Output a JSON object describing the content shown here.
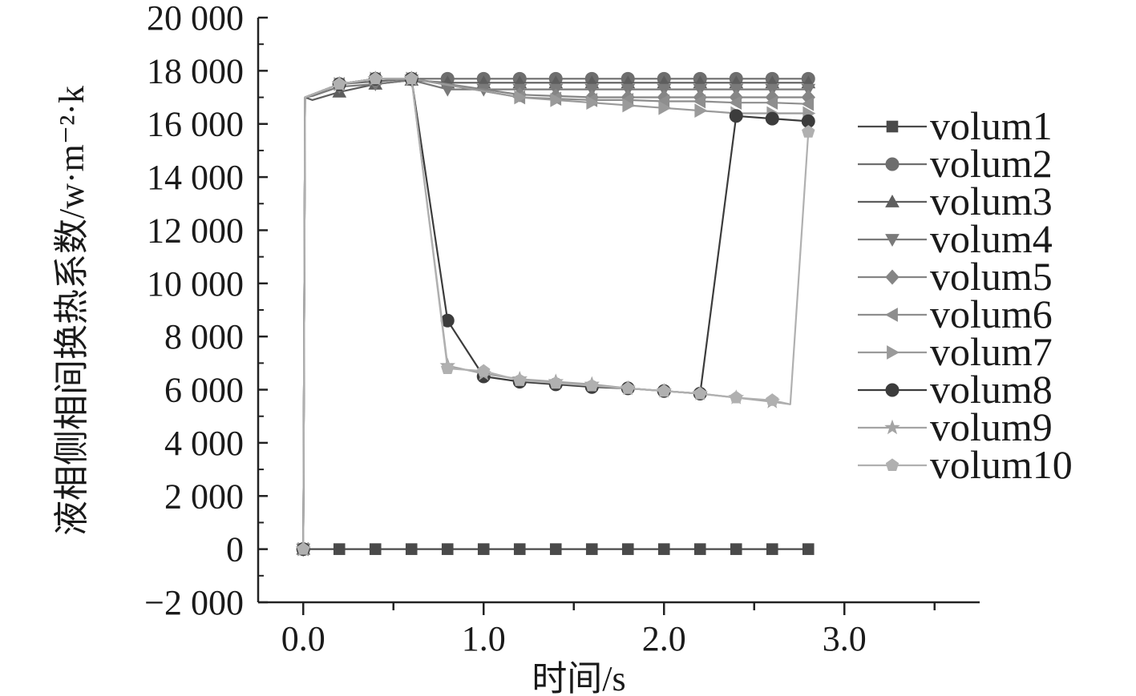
{
  "chart_data": {
    "type": "line",
    "title": "",
    "xlabel": "时间/s",
    "ylabel": "液相侧相间换热系数/w·m⁻²·k",
    "xlim": [
      -0.25,
      3.75
    ],
    "ylim": [
      -2000,
      20000
    ],
    "x_ticks": [
      0.0,
      1.0,
      2.0,
      3.0
    ],
    "x_tick_labels": [
      "0.0",
      "1.0",
      "2.0",
      "3.0"
    ],
    "y_ticks": [
      -2000,
      0,
      2000,
      4000,
      6000,
      8000,
      10000,
      12000,
      14000,
      16000,
      18000,
      20000
    ],
    "y_tick_labels": [
      "−2 000",
      "0",
      "2 000",
      "4 000",
      "6 000",
      "8 000",
      "10 000",
      "12 000",
      "14 000",
      "16 000",
      "18 000",
      "20 000"
    ],
    "grid": false,
    "legend_position": "right",
    "series": [
      {
        "name": "volum1",
        "marker": "square",
        "color": "#4a4a4a",
        "x": [
          0,
          0.2,
          0.4,
          0.6,
          0.8,
          1.0,
          1.2,
          1.4,
          1.6,
          1.8,
          2.0,
          2.2,
          2.4,
          2.6,
          2.8
        ],
        "y": [
          0,
          0,
          0,
          0,
          0,
          0,
          0,
          0,
          0,
          0,
          0,
          0,
          0,
          0,
          0
        ]
      },
      {
        "name": "volum2",
        "marker": "circle",
        "color": "#6e6e6e",
        "x": [
          0,
          0.01,
          0.05,
          0.2,
          0.4,
          0.6,
          0.8,
          1.0,
          1.2,
          1.4,
          1.6,
          1.8,
          2.0,
          2.2,
          2.4,
          2.6,
          2.8
        ],
        "y": [
          0,
          17000,
          17100,
          17500,
          17600,
          17700,
          17700,
          17700,
          17700,
          17700,
          17700,
          17700,
          17700,
          17700,
          17700,
          17700,
          17700
        ]
      },
      {
        "name": "volum3",
        "marker": "triangle-up",
        "color": "#5e5e5e",
        "x": [
          0,
          0.01,
          0.05,
          0.2,
          0.4,
          0.6,
          0.8,
          1.0,
          1.2,
          1.4,
          1.6,
          1.8,
          2.0,
          2.2,
          2.4,
          2.6,
          2.8
        ],
        "y": [
          0,
          17000,
          16900,
          17200,
          17500,
          17650,
          17550,
          17550,
          17550,
          17550,
          17550,
          17550,
          17550,
          17550,
          17550,
          17550,
          17550
        ]
      },
      {
        "name": "volum4",
        "marker": "triangle-down",
        "color": "#7a7a7a",
        "x": [
          0,
          0.01,
          0.05,
          0.2,
          0.4,
          0.6,
          0.8,
          1.0,
          1.2,
          1.4,
          1.6,
          1.8,
          2.0,
          2.2,
          2.4,
          2.6,
          2.8
        ],
        "y": [
          0,
          17000,
          17050,
          17400,
          17500,
          17650,
          17300,
          17300,
          17300,
          17300,
          17300,
          17300,
          17300,
          17300,
          17300,
          17300,
          17300
        ]
      },
      {
        "name": "volum5",
        "marker": "diamond",
        "color": "#858585",
        "x": [
          0,
          0.01,
          0.2,
          0.4,
          0.6,
          1.2,
          1.4,
          1.6,
          1.8,
          2.0,
          2.2,
          2.4,
          2.6,
          2.8
        ],
        "y": [
          0,
          17000,
          17500,
          17700,
          17700,
          17100,
          17050,
          17000,
          17000,
          17000,
          17000,
          17000,
          17000,
          17000
        ]
      },
      {
        "name": "volum6",
        "marker": "triangle-left",
        "color": "#8e8e8e",
        "x": [
          0,
          0.01,
          0.2,
          0.4,
          0.6,
          1.2,
          1.4,
          1.6,
          1.8,
          2.0,
          2.2,
          2.4,
          2.6,
          2.8
        ],
        "y": [
          0,
          17000,
          17500,
          17700,
          17700,
          17000,
          16950,
          16900,
          16900,
          16850,
          16850,
          16800,
          16800,
          16750
        ]
      },
      {
        "name": "volum7",
        "marker": "triangle-right",
        "color": "#9a9a9a",
        "x": [
          0,
          0.01,
          0.2,
          0.4,
          0.6,
          1.2,
          1.4,
          1.6,
          1.8,
          2.0,
          2.2,
          2.4,
          2.6,
          2.8
        ],
        "y": [
          0,
          17000,
          17500,
          17700,
          17700,
          17000,
          16900,
          16800,
          16700,
          16600,
          16500,
          16400,
          16400,
          16400
        ]
      },
      {
        "name": "volum8",
        "marker": "circle",
        "color": "#3c3c3c",
        "x": [
          0,
          0.01,
          0.2,
          0.4,
          0.6,
          0.8,
          1.0,
          1.2,
          1.4,
          1.6,
          1.8,
          2.0,
          2.2,
          2.4,
          2.6,
          2.8
        ],
        "y": [
          0,
          17000,
          17500,
          17700,
          17700,
          8600,
          6500,
          6300,
          6200,
          6100,
          6050,
          5950,
          5850,
          16300,
          16200,
          16100
        ]
      },
      {
        "name": "volum9",
        "marker": "star",
        "color": "#a4a4a4",
        "x": [
          0,
          0.01,
          0.2,
          0.4,
          0.6,
          0.8,
          1.0,
          1.2,
          1.4,
          1.6,
          1.8,
          2.0,
          2.2,
          2.4,
          2.6,
          2.7
        ],
        "y": [
          0,
          17000,
          17500,
          17700,
          17700,
          6900,
          6600,
          6400,
          6300,
          6200,
          6050,
          5950,
          5850,
          5700,
          5550,
          5450
        ]
      },
      {
        "name": "volum10",
        "marker": "pentagon",
        "color": "#b0b0b0",
        "x": [
          0,
          0.01,
          0.2,
          0.4,
          0.6,
          0.8,
          1.0,
          1.2,
          1.4,
          1.6,
          1.8,
          2.0,
          2.2,
          2.4,
          2.6,
          2.7,
          2.8
        ],
        "y": [
          0,
          17000,
          17500,
          17700,
          17700,
          6800,
          6700,
          6350,
          6250,
          6150,
          6050,
          5950,
          5850,
          5700,
          5600,
          5450,
          15700
        ]
      }
    ]
  }
}
